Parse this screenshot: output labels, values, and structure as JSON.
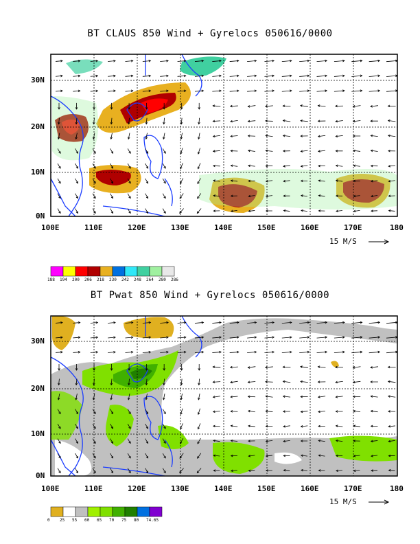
{
  "panels": [
    {
      "title": "BT CLAUS 850 Wind + Gyrelocs 050616/0000",
      "lat_labels": [
        "30N",
        "20N",
        "10N",
        "0N"
      ],
      "lon_labels": [
        "100E",
        "110E",
        "120E",
        "130E",
        "140E",
        "150E",
        "160E",
        "170E",
        "180"
      ],
      "scale_label": "15 M/S",
      "legend": {
        "colors": [
          "#ff00ff",
          "#ffff00",
          "#ff0000",
          "#b00000",
          "#e8b020",
          "#0070e0",
          "#30e8f8",
          "#40d0a0",
          "#a0f0a0",
          "#e8e8e8"
        ],
        "labels": [
          "188",
          "194",
          "200",
          "206",
          "218",
          "230",
          "242",
          "248",
          "264",
          "280",
          "286"
        ]
      }
    },
    {
      "title": "BT Pwat 850 Wind + Gyrelocs 050616/0000",
      "lat_labels": [
        "30N",
        "20N",
        "10N",
        "0N"
      ],
      "lon_labels": [
        "100E",
        "110E",
        "120E",
        "130E",
        "140E",
        "150E",
        "160E",
        "170E",
        "180"
      ],
      "scale_label": "15 M/S",
      "legend": {
        "colors": [
          "#e0b020",
          "#ffffff",
          "#c0c0c0",
          "#a0f000",
          "#80e000",
          "#40b000",
          "#208000",
          "#0070e0",
          "#8000d0"
        ],
        "labels": [
          "0",
          "25",
          "55",
          "60",
          "65",
          "70",
          "75",
          "80",
          "74.65"
        ]
      }
    }
  ],
  "colors": {
    "coast": "#1a3cff",
    "frame": "#000000"
  }
}
